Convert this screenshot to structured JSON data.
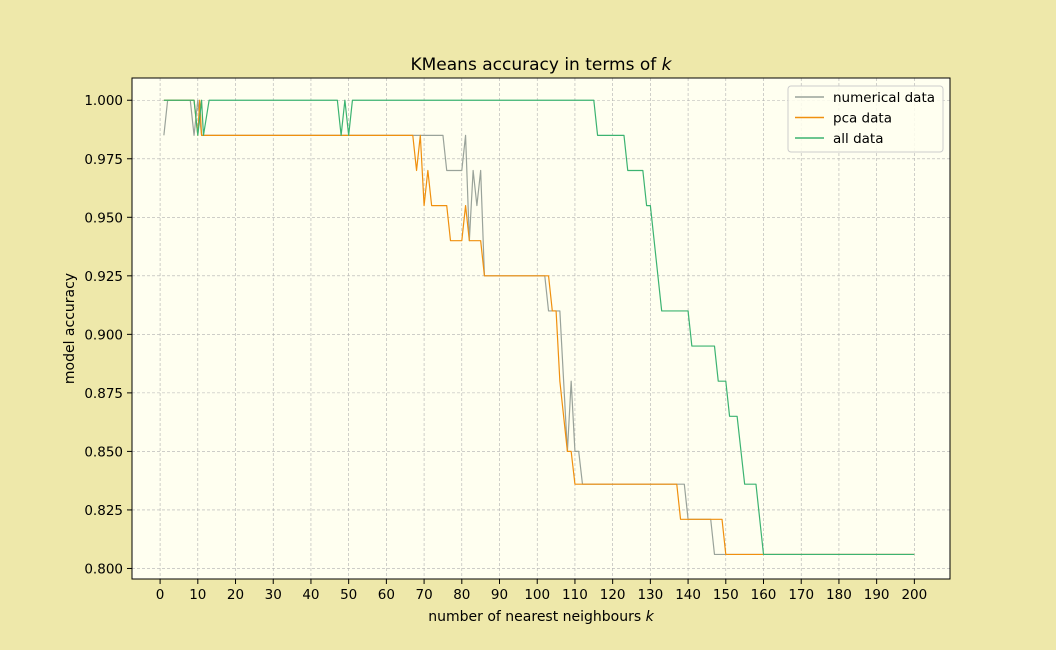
{
  "chart_data": {
    "type": "line",
    "title": "KMeans accuracy in terms of ",
    "title_k": "k",
    "xlabel": "number of nearest neighbours ",
    "xlabel_k": "k",
    "ylabel": "model accuracy",
    "xlim": [
      -7.45,
      209.45
    ],
    "ylim": [
      0.7955,
      1.0095
    ],
    "x_ticks": [
      0,
      10,
      20,
      30,
      40,
      50,
      60,
      70,
      80,
      90,
      100,
      110,
      120,
      130,
      140,
      150,
      160,
      170,
      180,
      190,
      200
    ],
    "y_ticks": [
      0.8,
      0.825,
      0.85,
      0.875,
      0.9,
      0.925,
      0.95,
      0.975,
      1.0
    ],
    "y_tick_labels": [
      "0.800",
      "0.825",
      "0.850",
      "0.875",
      "0.900",
      "0.925",
      "0.950",
      "0.975",
      "1.000"
    ],
    "grid": true,
    "legend_position": "upper-right",
    "plot_background": "#fffff0",
    "figure_background": "#eee8aa",
    "series": [
      {
        "name": "numerical data",
        "color": "#9aa39a",
        "points": [
          [
            1,
            0.985
          ],
          [
            2,
            1.0
          ],
          [
            8,
            1.0
          ],
          [
            9,
            0.985
          ],
          [
            10,
            1.0
          ],
          [
            11,
            0.985
          ],
          [
            75,
            0.985
          ],
          [
            76,
            0.97
          ],
          [
            80,
            0.97
          ],
          [
            81,
            0.985
          ],
          [
            82,
            0.94
          ],
          [
            83,
            0.97
          ],
          [
            84,
            0.955
          ],
          [
            85,
            0.97
          ],
          [
            86,
            0.925
          ],
          [
            102,
            0.925
          ],
          [
            103,
            0.91
          ],
          [
            106,
            0.91
          ],
          [
            107,
            0.88
          ],
          [
            108,
            0.85
          ],
          [
            109,
            0.88
          ],
          [
            110,
            0.85
          ],
          [
            111,
            0.85
          ],
          [
            112,
            0.836
          ],
          [
            138,
            0.836
          ],
          [
            139,
            0.836
          ],
          [
            140,
            0.821
          ],
          [
            146,
            0.821
          ],
          [
            147,
            0.806
          ],
          [
            200,
            0.806
          ]
        ]
      },
      {
        "name": "pca data",
        "color": "#f0900e",
        "points": [
          [
            1,
            1.0
          ],
          [
            9,
            1.0
          ],
          [
            10,
            0.985
          ],
          [
            10.5,
            1.0
          ],
          [
            11,
            0.985
          ],
          [
            67,
            0.985
          ],
          [
            68,
            0.97
          ],
          [
            69,
            0.985
          ],
          [
            70,
            0.955
          ],
          [
            71,
            0.97
          ],
          [
            72,
            0.955
          ],
          [
            76,
            0.955
          ],
          [
            77,
            0.94
          ],
          [
            80,
            0.94
          ],
          [
            81,
            0.955
          ],
          [
            82,
            0.94
          ],
          [
            85,
            0.94
          ],
          [
            86,
            0.925
          ],
          [
            103,
            0.925
          ],
          [
            104,
            0.91
          ],
          [
            105,
            0.91
          ],
          [
            106,
            0.88
          ],
          [
            108,
            0.85
          ],
          [
            109,
            0.85
          ],
          [
            110,
            0.836
          ],
          [
            137,
            0.836
          ],
          [
            138,
            0.821
          ],
          [
            149,
            0.821
          ],
          [
            150,
            0.806
          ],
          [
            200,
            0.806
          ]
        ]
      },
      {
        "name": "all data",
        "color": "#3cb371",
        "points": [
          [
            1,
            1.0
          ],
          [
            9,
            1.0
          ],
          [
            10,
            0.985
          ],
          [
            11,
            1.0
          ],
          [
            11.5,
            0.985
          ],
          [
            13,
            1.0
          ],
          [
            47,
            1.0
          ],
          [
            48,
            0.985
          ],
          [
            49,
            1.0
          ],
          [
            50,
            0.985
          ],
          [
            51,
            1.0
          ],
          [
            115,
            1.0
          ],
          [
            116,
            0.985
          ],
          [
            123,
            0.985
          ],
          [
            124,
            0.97
          ],
          [
            128,
            0.97
          ],
          [
            129,
            0.955
          ],
          [
            130,
            0.955
          ],
          [
            133,
            0.91
          ],
          [
            140,
            0.91
          ],
          [
            141,
            0.895
          ],
          [
            147,
            0.895
          ],
          [
            148,
            0.88
          ],
          [
            150,
            0.88
          ],
          [
            151,
            0.865
          ],
          [
            153,
            0.865
          ],
          [
            155,
            0.836
          ],
          [
            158,
            0.836
          ],
          [
            160,
            0.806
          ],
          [
            200,
            0.806
          ]
        ]
      }
    ]
  }
}
